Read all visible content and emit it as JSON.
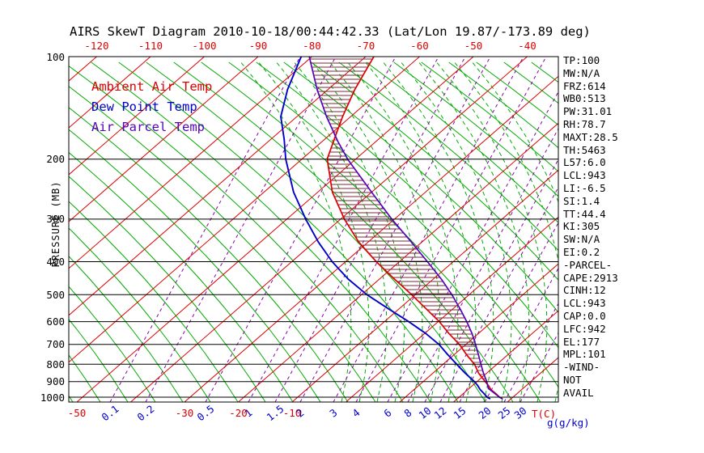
{
  "chart_data": {
    "type": "line",
    "title": "AIRS SkewT Diagram 2010-10-18/00:44:42.33 (Lat/Lon 19.87/-173.89 deg)",
    "y_axis": {
      "label": "PRESSURE (MB)",
      "scale": "log",
      "units": "mb",
      "ticks": [
        100,
        200,
        300,
        400,
        500,
        600,
        700,
        800,
        900,
        1000
      ]
    },
    "x_axis": {
      "temp_label": "T(C)",
      "mixing_label": "g(g/kg)",
      "top_temp_ticks": [
        -120,
        -110,
        -100,
        -90,
        -80,
        -70,
        -60,
        -50,
        -40
      ],
      "bottom_temp_ticks": [
        -50,
        -30,
        -20,
        -10
      ],
      "mixing_ratio_ticks": [
        "0.1",
        "0.2",
        "0.5",
        "1",
        "1.5",
        "2",
        "3",
        "4",
        "6",
        "8",
        "10",
        "12",
        "15",
        "20",
        "25",
        "30"
      ]
    },
    "series": [
      {
        "name": "Ambient Air Temp",
        "color": "#dd0000",
        "points_pressure_temp": [
          [
            1010,
            28.3
          ],
          [
            1000,
            27.5
          ],
          [
            975,
            26.0
          ],
          [
            950,
            24.3
          ],
          [
            925,
            23.0
          ],
          [
            900,
            21.5
          ],
          [
            850,
            18.5
          ],
          [
            800,
            15.8
          ],
          [
            750,
            12.3
          ],
          [
            700,
            8.8
          ],
          [
            650,
            4.5
          ],
          [
            600,
            0.2
          ],
          [
            550,
            -5.0
          ],
          [
            500,
            -10.7
          ],
          [
            450,
            -17.2
          ],
          [
            400,
            -24.3
          ],
          [
            350,
            -31.8
          ],
          [
            300,
            -39.3
          ],
          [
            250,
            -47.3
          ],
          [
            200,
            -55.3
          ],
          [
            175,
            -58.2
          ],
          [
            150,
            -61.5
          ],
          [
            125,
            -65.0
          ],
          [
            100,
            -68.5
          ]
        ]
      },
      {
        "name": "Dew Point Temp",
        "color": "#0000cc",
        "points_pressure_temp": [
          [
            1010,
            26.0
          ],
          [
            1000,
            25.2
          ],
          [
            975,
            23.8
          ],
          [
            950,
            22.3
          ],
          [
            925,
            21.0
          ],
          [
            900,
            19.5
          ],
          [
            850,
            16.0
          ],
          [
            800,
            12.5
          ],
          [
            750,
            8.8
          ],
          [
            700,
            5.0
          ],
          [
            650,
            0.2
          ],
          [
            600,
            -5.5
          ],
          [
            550,
            -12.0
          ],
          [
            500,
            -19.0
          ],
          [
            450,
            -25.8
          ],
          [
            400,
            -32.5
          ],
          [
            350,
            -39.3
          ],
          [
            300,
            -46.5
          ],
          [
            250,
            -54.5
          ],
          [
            200,
            -63.0
          ],
          [
            175,
            -67.5
          ],
          [
            150,
            -73.0
          ],
          [
            125,
            -77.5
          ],
          [
            100,
            -82.0
          ]
        ]
      },
      {
        "name": "Air Parcel Temp",
        "color": "#5502bb",
        "points_pressure_temp": [
          [
            1010,
            28.3
          ],
          [
            1000,
            27.5
          ],
          [
            943,
            23.6
          ],
          [
            900,
            21.8
          ],
          [
            850,
            19.4
          ],
          [
            800,
            17.0
          ],
          [
            750,
            14.5
          ],
          [
            700,
            11.8
          ],
          [
            650,
            8.8
          ],
          [
            600,
            5.3
          ],
          [
            550,
            1.3
          ],
          [
            500,
            -3.2
          ],
          [
            450,
            -8.5
          ],
          [
            400,
            -14.8
          ],
          [
            350,
            -22.0
          ],
          [
            300,
            -30.5
          ],
          [
            250,
            -40.0
          ],
          [
            200,
            -51.5
          ],
          [
            177,
            -57.2
          ],
          [
            150,
            -64.5
          ],
          [
            125,
            -72.0
          ],
          [
            100,
            -80.5
          ]
        ]
      }
    ],
    "hatched_area": {
      "between": [
        "Ambient Air Temp",
        "Air Parcel Temp"
      ],
      "pressure_range": [
        942,
        101
      ]
    },
    "grid": {
      "isotherm_step_c": 10,
      "isotherm_color": "#dd0000",
      "dry_adiabat_color": "#00aa00",
      "moist_adiabat_color": "#00aa00",
      "mixing_ratio_color": "#8800aa",
      "pressure_line_color": "#000000",
      "hatch_color": "#7a2b3a"
    }
  },
  "stats_panel": {
    "lines": [
      "TP:100",
      "MW:N/A",
      "FRZ:614",
      "WB0:513",
      "PW:31.01",
      "RH:78.7",
      "MAXT:28.5",
      "TH:5463",
      "L57:6.0",
      "LCL:943",
      "LI:-6.5",
      "SI:1.4",
      "TT:44.4",
      "KI:305",
      "SW:N/A",
      "EI:0.2",
      "-PARCEL-",
      "CAPE:2913",
      "CINH:12",
      "LCL:943",
      "CAP:0.0",
      "LFC:942",
      "EL:177",
      "MPL:101",
      "-WIND-",
      "NOT",
      "AVAIL"
    ]
  }
}
